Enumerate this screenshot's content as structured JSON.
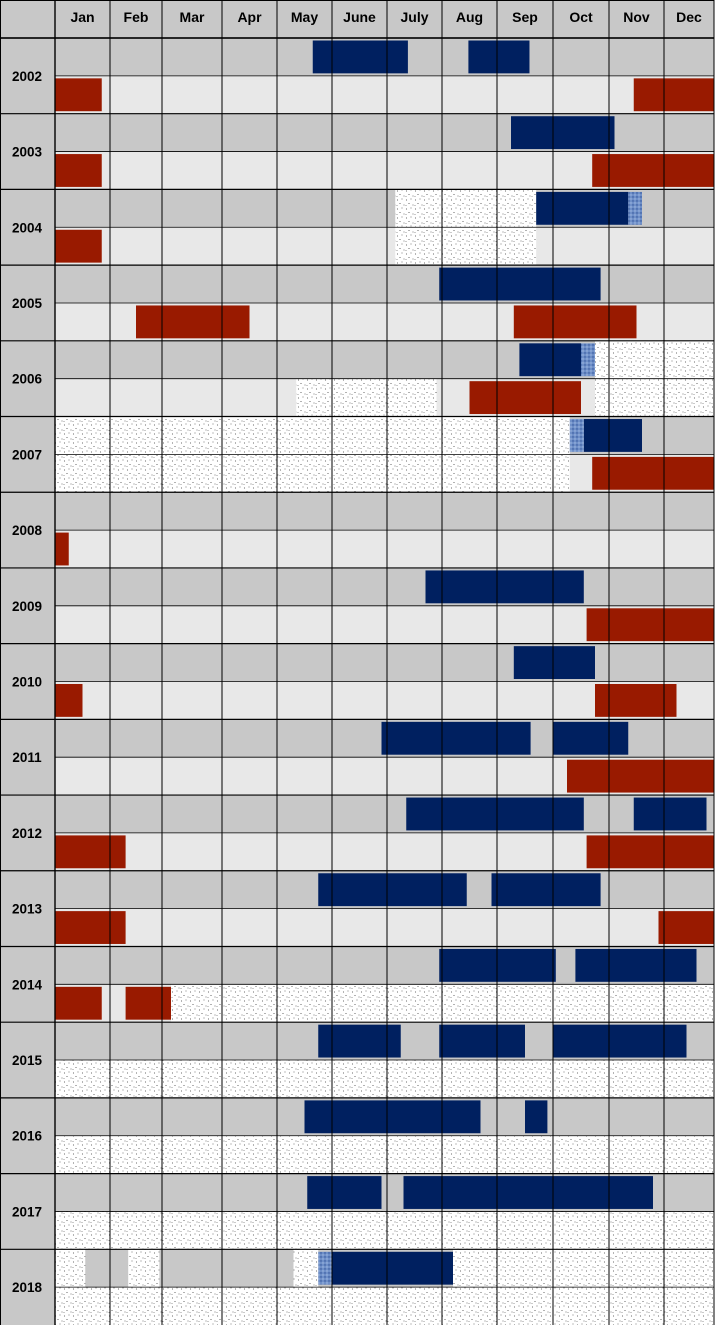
{
  "chart_data": {
    "type": "timeline",
    "months": [
      "Jan",
      "Feb",
      "Mar",
      "Apr",
      "May",
      "June",
      "July",
      "Aug",
      "Sep",
      "Oct",
      "Nov",
      "Dec"
    ],
    "colors": {
      "blue_bar": "#002060",
      "red_bar": "#991A00",
      "row_top": "#C8C8C8",
      "row_bottom": "#E8E8E8",
      "no_data": "#FFFFFF",
      "partial": "#6E8FC8",
      "grid": "#000000"
    },
    "years": [
      {
        "year": "2002",
        "blue": [
          [
            4.65,
            6.38
          ],
          [
            7.48,
            8.58
          ]
        ],
        "red": [
          [
            0.0,
            0.85
          ],
          [
            10.45,
            12.0
          ]
        ],
        "partial": [],
        "no_data_top": [],
        "no_data_bottom": []
      },
      {
        "year": "2003",
        "blue": [
          [
            8.25,
            10.1
          ]
        ],
        "red": [
          [
            0.0,
            0.85
          ],
          [
            9.7,
            12.0
          ]
        ],
        "partial": [],
        "no_data_top": [],
        "no_data_bottom": []
      },
      {
        "year": "2004",
        "blue": [
          [
            8.7,
            10.35
          ]
        ],
        "red": [
          [
            0.0,
            0.85
          ]
        ],
        "partial": [
          {
            "row": "top",
            "range": [
              10.35,
              10.6
            ]
          }
        ],
        "no_data_top": [
          [
            6.15,
            8.7
          ]
        ],
        "no_data_bottom": [
          [
            6.15,
            8.7
          ]
        ]
      },
      {
        "year": "2005",
        "blue": [
          [
            6.95,
            9.85
          ]
        ],
        "red": [
          [
            1.5,
            3.5
          ],
          [
            8.3,
            10.5
          ]
        ],
        "partial": [],
        "no_data_top": [],
        "no_data_bottom": []
      },
      {
        "year": "2006",
        "blue": [
          [
            8.4,
            9.5
          ]
        ],
        "red": [
          [
            7.5,
            9.5
          ]
        ],
        "partial": [
          {
            "row": "top",
            "range": [
              9.5,
              9.75
            ]
          }
        ],
        "no_data_top": [
          [
            9.75,
            12.0
          ]
        ],
        "no_data_bottom": [
          [
            4.35,
            6.9
          ],
          [
            9.75,
            12.0
          ]
        ]
      },
      {
        "year": "2007",
        "blue": [
          [
            9.55,
            10.6
          ]
        ],
        "red": [
          [
            9.7,
            12.0
          ]
        ],
        "partial": [
          {
            "row": "top",
            "range": [
              9.3,
              9.55
            ]
          }
        ],
        "no_data_top": [
          [
            0.0,
            9.3
          ]
        ],
        "no_data_bottom": [
          [
            0.0,
            9.3
          ]
        ]
      },
      {
        "year": "2008",
        "blue": [],
        "red": [
          [
            0.0,
            0.25
          ]
        ],
        "partial": [],
        "no_data_top": [],
        "no_data_bottom": []
      },
      {
        "year": "2009",
        "blue": [
          [
            6.7,
            9.55
          ]
        ],
        "red": [
          [
            9.6,
            12.0
          ]
        ],
        "partial": [],
        "no_data_top": [],
        "no_data_bottom": []
      },
      {
        "year": "2010",
        "blue": [
          [
            8.3,
            9.75
          ]
        ],
        "red": [
          [
            0.0,
            0.5
          ],
          [
            9.75,
            11.25
          ]
        ],
        "partial": [],
        "no_data_top": [],
        "no_data_bottom": []
      },
      {
        "year": "2011",
        "blue": [
          [
            5.9,
            8.6
          ],
          [
            9.0,
            10.35
          ]
        ],
        "red": [
          [
            9.25,
            12.0
          ]
        ],
        "partial": [],
        "no_data_top": [],
        "no_data_bottom": []
      },
      {
        "year": "2012",
        "blue": [
          [
            6.35,
            9.55
          ],
          [
            10.45,
            11.85
          ]
        ],
        "red": [
          [
            0.0,
            1.3
          ],
          [
            9.6,
            12.0
          ]
        ],
        "partial": [],
        "no_data_top": [],
        "no_data_bottom": []
      },
      {
        "year": "2013",
        "blue": [
          [
            4.75,
            7.45
          ],
          [
            7.9,
            9.85
          ]
        ],
        "red": [
          [
            0.0,
            1.3
          ],
          [
            10.9,
            12.0
          ]
        ],
        "partial": [],
        "no_data_top": [],
        "no_data_bottom": []
      },
      {
        "year": "2014",
        "blue": [
          [
            6.95,
            9.05
          ],
          [
            9.4,
            11.65
          ]
        ],
        "red": [
          [
            0.0,
            0.85
          ],
          [
            1.3,
            2.15
          ]
        ],
        "partial": [],
        "no_data_top": [],
        "no_data_bottom": [
          [
            2.15,
            12.0
          ]
        ]
      },
      {
        "year": "2015",
        "blue": [
          [
            4.75,
            6.25
          ],
          [
            6.95,
            8.5
          ],
          [
            9.0,
            11.45
          ]
        ],
        "red": [],
        "partial": [],
        "no_data_top": [],
        "no_data_bottom": [
          [
            0.0,
            12.0
          ]
        ]
      },
      {
        "year": "2016",
        "blue": [
          [
            4.5,
            7.7
          ],
          [
            8.5,
            8.9
          ]
        ],
        "red": [],
        "partial": [],
        "no_data_top": [],
        "no_data_bottom": [
          [
            0.0,
            12.0
          ]
        ]
      },
      {
        "year": "2017",
        "blue": [
          [
            4.55,
            5.9
          ],
          [
            6.3,
            10.8
          ]
        ],
        "red": [],
        "partial": [],
        "no_data_top": [],
        "no_data_bottom": [
          [
            0.0,
            12.0
          ]
        ]
      },
      {
        "year": "2018",
        "blue": [
          [
            5.0,
            7.2
          ]
        ],
        "red": [],
        "partial": [
          {
            "row": "top",
            "range": [
              4.75,
              5.0
            ]
          }
        ],
        "no_data_top": [
          [
            0.0,
            0.55
          ],
          [
            1.35,
            1.95
          ],
          [
            4.3,
            4.75
          ],
          [
            7.2,
            12.0
          ]
        ],
        "no_data_bottom": [
          [
            0.0,
            12.0
          ]
        ]
      }
    ]
  }
}
